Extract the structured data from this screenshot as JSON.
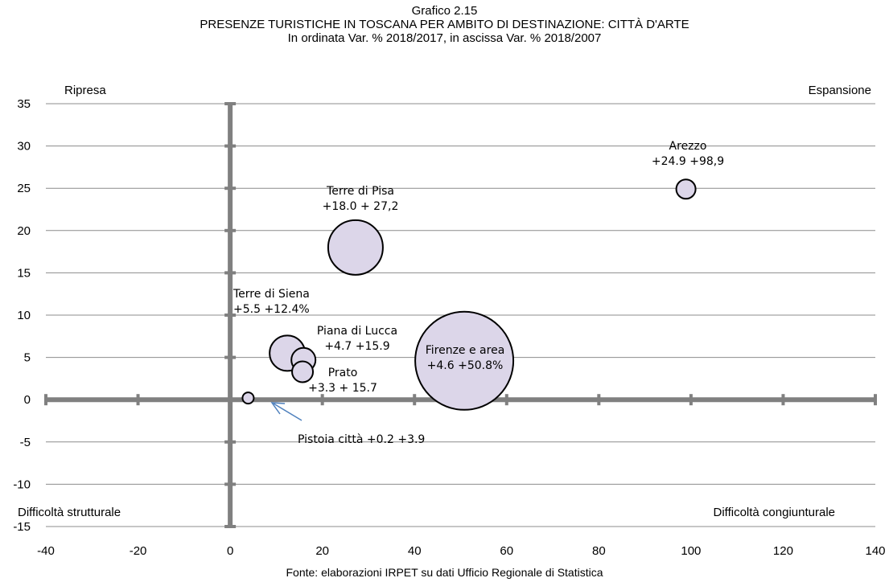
{
  "titles": {
    "line1": "Grafico 2.15",
    "line2": "PRESENZE TURISTICHE IN TOSCANA PER AMBITO DI DESTINAZIONE: CITTÀ D'ARTE",
    "line3": "In ordinata Var. % 2018/2017, in ascissa Var. % 2018/2007"
  },
  "source": "Fonte: elaborazioni IRPET su dati Ufficio Regionale di Statistica",
  "quadrants": {
    "top_left": "Ripresa",
    "top_right": "Espansione",
    "bottom_left": "Difficoltà strutturale",
    "bottom_right": "Difficoltà congiunturale"
  },
  "chart_data": {
    "type": "bubble",
    "title": "PRESENZE TURISTICHE IN TOSCANA PER AMBITO DI DESTINAZIONE: CITTÀ D'ARTE",
    "subtitle": "In ordinata Var. % 2018/2017, in ascissa Var. % 2018/2007",
    "xlim": [
      -40,
      140
    ],
    "ylim": [
      -15,
      35
    ],
    "x_ticks": [
      -40,
      -20,
      0,
      20,
      40,
      60,
      80,
      100,
      120,
      140
    ],
    "y_ticks": [
      -15,
      -10,
      -5,
      0,
      5,
      10,
      15,
      20,
      25,
      30,
      35
    ],
    "grid": "horizontal",
    "bubble_color": "#dcd6e9",
    "bubble_border": "#000000",
    "axis_color": "#808080",
    "points": [
      {
        "name": "Firenze e area",
        "x": 50.8,
        "y": 4.6,
        "label_lines": [
          "Firenze e area",
          "+4.6 +50.8%"
        ]
      },
      {
        "name": "Terre di Pisa",
        "x": 27.2,
        "y": 18.0,
        "label_lines": [
          "Terre di Pisa",
          "+18.0 + 27,2"
        ]
      },
      {
        "name": "Arezzo",
        "x": 98.9,
        "y": 24.9,
        "label_lines": [
          "Arezzo",
          "+24.9 +98,9"
        ]
      },
      {
        "name": "Terre di Siena",
        "x": 12.4,
        "y": 5.5,
        "label_lines": [
          "Terre di Siena",
          "+5.5 +12.4%"
        ]
      },
      {
        "name": "Piana di Lucca",
        "x": 15.9,
        "y": 4.7,
        "label_lines": [
          "Piana di Lucca",
          "+4.7 +15.9"
        ]
      },
      {
        "name": "Prato",
        "x": 15.7,
        "y": 3.3,
        "label_lines": [
          "Prato",
          "+3.3 + 15.7"
        ]
      },
      {
        "name": "Pistoia città",
        "x": 3.9,
        "y": 0.2,
        "label_lines": [
          "Pistoia città +0.2 +3.9"
        ]
      }
    ]
  }
}
